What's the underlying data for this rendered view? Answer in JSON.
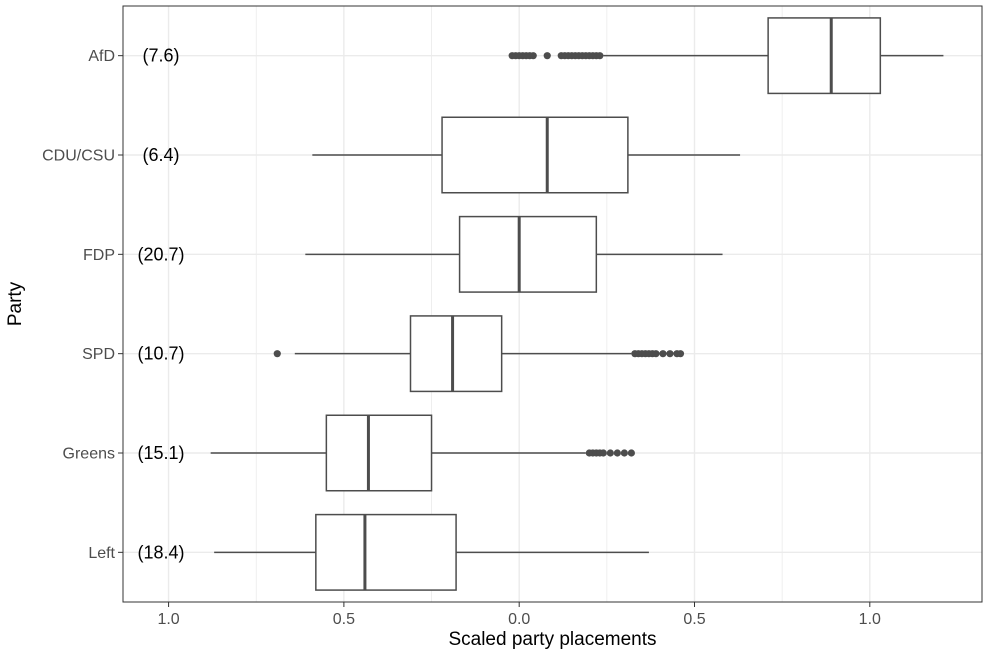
{
  "chart_data": {
    "type": "boxplot",
    "orientation": "horizontal",
    "xlabel": "Scaled party placements",
    "ylabel": "Party",
    "xlim": [
      -1.13,
      1.32
    ],
    "x_ticks": [
      -1.0,
      -0.5,
      0.0,
      0.5,
      1.0
    ],
    "x_tick_labels": [
      "1.0",
      "0.5",
      "0.0",
      "0.5",
      "1.0"
    ],
    "grid": true,
    "categories": [
      "AfD",
      "CDU/CSU",
      "FDP",
      "SPD",
      "Greens",
      "Left"
    ],
    "annotations": [
      "(7.6)",
      "(6.4)",
      "(20.7)",
      "(10.7)",
      "(15.1)",
      "(18.4)"
    ],
    "boxes": [
      {
        "name": "AfD",
        "whisker_low": 0.24,
        "q1": 0.71,
        "median": 0.89,
        "q3": 1.03,
        "whisker_high": 1.21,
        "outliers": [
          -0.02,
          -0.01,
          0.0,
          0.01,
          0.02,
          0.03,
          0.04,
          0.08,
          0.12,
          0.13,
          0.14,
          0.15,
          0.16,
          0.17,
          0.18,
          0.19,
          0.2,
          0.21,
          0.22,
          0.23
        ]
      },
      {
        "name": "CDU/CSU",
        "whisker_low": -0.59,
        "q1": -0.22,
        "median": 0.08,
        "q3": 0.31,
        "whisker_high": 0.63,
        "outliers": []
      },
      {
        "name": "FDP",
        "whisker_low": -0.61,
        "q1": -0.17,
        "median": 0.0,
        "q3": 0.22,
        "whisker_high": 0.58,
        "outliers": []
      },
      {
        "name": "SPD",
        "whisker_low": -0.64,
        "q1": -0.31,
        "median": -0.19,
        "q3": -0.05,
        "whisker_high": 0.32,
        "outliers": [
          -0.69,
          0.33,
          0.34,
          0.35,
          0.36,
          0.37,
          0.38,
          0.39,
          0.41,
          0.43,
          0.45,
          0.46
        ]
      },
      {
        "name": "Greens",
        "whisker_low": -0.88,
        "q1": -0.55,
        "median": -0.43,
        "q3": -0.25,
        "whisker_high": 0.19,
        "outliers": [
          0.2,
          0.21,
          0.22,
          0.23,
          0.24,
          0.26,
          0.28,
          0.3,
          0.32
        ]
      },
      {
        "name": "Left",
        "whisker_low": -0.87,
        "q1": -0.58,
        "median": -0.44,
        "q3": -0.18,
        "whisker_high": 0.37,
        "outliers": []
      }
    ],
    "colors": {
      "box_stroke": "#4d4d4d",
      "grid": "#ebebeb",
      "outlier": "#4d4d4d"
    }
  }
}
